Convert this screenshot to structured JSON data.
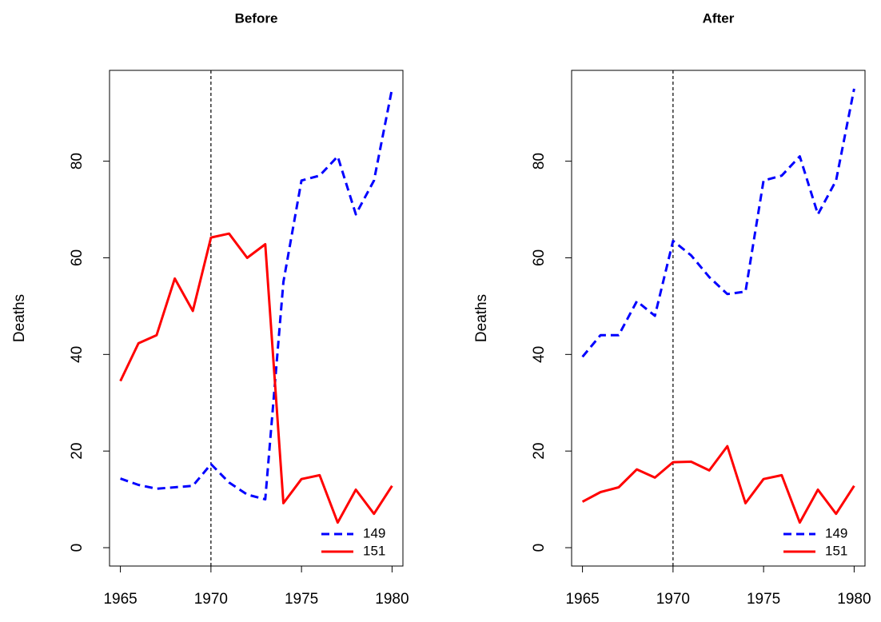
{
  "chart_data": [
    {
      "type": "line",
      "title": "Before",
      "y_label": "Deaths",
      "x": [
        1965,
        1966,
        1967,
        1968,
        1969,
        1970,
        1971,
        1972,
        1973,
        1974,
        1975,
        1976,
        1977,
        1978,
        1979,
        1980
      ],
      "series": [
        {
          "name": "149",
          "color": "#0000ff",
          "dashed": true,
          "values": [
            14.3,
            13,
            12.2,
            12.5,
            12.8,
            17.3,
            13.5,
            11,
            10,
            55,
            76,
            77,
            81,
            69,
            76,
            95
          ]
        },
        {
          "name": "151",
          "color": "#ff0000",
          "dashed": false,
          "values": [
            34.5,
            42.3,
            44,
            55.7,
            49,
            64.2,
            65,
            60,
            62.8,
            9.2,
            14.2,
            15,
            5.2,
            12,
            7,
            12.8
          ]
        }
      ],
      "xlim": [
        1964.4,
        1980.6
      ],
      "xticks": [
        1965,
        1970,
        1975,
        1980
      ],
      "ylim": [
        -3.8,
        98.8
      ],
      "yticks": [
        0,
        20,
        40,
        60,
        80
      ],
      "vline": 1970,
      "legend": "bottomright"
    },
    {
      "type": "line",
      "title": "After",
      "y_label": "Deaths",
      "x": [
        1965,
        1966,
        1967,
        1968,
        1969,
        1970,
        1971,
        1972,
        1973,
        1974,
        1975,
        1976,
        1977,
        1978,
        1979,
        1980
      ],
      "series": [
        {
          "name": "149",
          "color": "#0000ff",
          "dashed": true,
          "values": [
            39.5,
            44,
            44,
            51,
            48,
            63.5,
            60.5,
            56,
            52.5,
            53,
            76,
            77,
            81,
            69,
            76,
            95
          ]
        },
        {
          "name": "151",
          "color": "#ff0000",
          "dashed": false,
          "values": [
            9.5,
            11.5,
            12.5,
            16.2,
            14.5,
            17.7,
            17.8,
            16,
            21,
            9.2,
            14.2,
            15,
            5.2,
            12,
            7,
            12.8
          ]
        }
      ],
      "xlim": [
        1964.4,
        1980.6
      ],
      "xticks": [
        1965,
        1970,
        1975,
        1980
      ],
      "ylim": [
        -3.8,
        98.8
      ],
      "yticks": [
        0,
        20,
        40,
        60,
        80
      ],
      "vline": 1970,
      "legend": "bottomright"
    }
  ]
}
